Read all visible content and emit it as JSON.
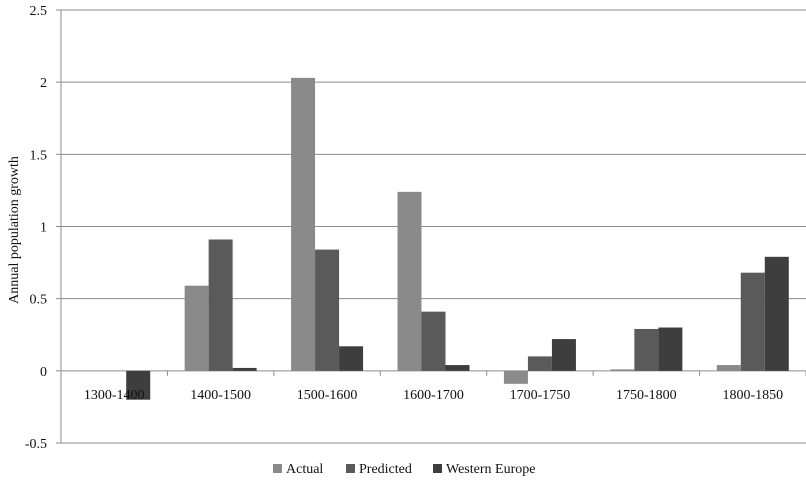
{
  "chart_data": {
    "type": "bar",
    "title": "",
    "xlabel": "",
    "ylabel": "Annual population growth",
    "ylim": [
      -0.5,
      2.5
    ],
    "yticks": [
      "-0.5",
      "0",
      "0.5",
      "1",
      "1.5",
      "2",
      "2.5"
    ],
    "grid": true,
    "legend_position": "bottom",
    "categories": [
      "1300-1400",
      "1400-1500",
      "1500-1600",
      "1600-1700",
      "1700-1750",
      "1750-1800",
      "1800-1850"
    ],
    "series": [
      {
        "name": "Actual",
        "color": "#8a8a8a",
        "values": [
          0,
          0.59,
          2.03,
          1.24,
          -0.09,
          0.01,
          0.04
        ]
      },
      {
        "name": "Predicted",
        "color": "#5a5a5a",
        "values": [
          0,
          0.91,
          0.84,
          0.41,
          0.1,
          0.29,
          0.68
        ]
      },
      {
        "name": "Western Europe",
        "color": "#3e3e3e",
        "values": [
          -0.2,
          0.02,
          0.17,
          0.04,
          0.22,
          0.3,
          0.79
        ]
      }
    ]
  }
}
